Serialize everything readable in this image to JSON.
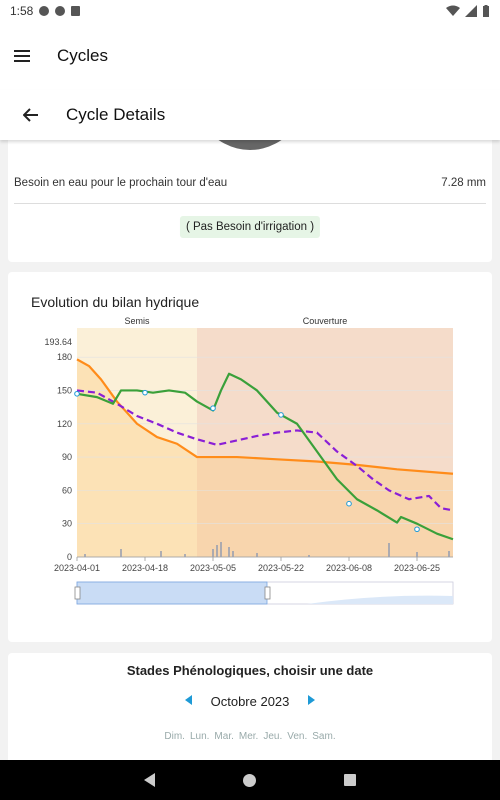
{
  "status": {
    "time": "1:58"
  },
  "appbar": {
    "title": "Cycles"
  },
  "subbar": {
    "title": "Cycle Details"
  },
  "water": {
    "label": "Besoin en eau pour le prochain tour d'eau",
    "value": "7.28 mm"
  },
  "irrigation_badge": "( Pas Besoin d'irrigation )",
  "chart_section": {
    "title": "Evolution du bilan hydrique"
  },
  "chart_data": {
    "type": "line",
    "title": "Evolution du bilan hydrique",
    "xlabel": "",
    "ylabel": "",
    "ylim": [
      0,
      193.64
    ],
    "ymax_label": "193.64",
    "yticks": [
      0,
      30,
      60,
      90,
      120,
      150,
      180
    ],
    "x_tick_labels": [
      "2023-04-01",
      "2023-04-18",
      "2023-05-05",
      "2023-05-22",
      "2023-06-08",
      "2023-06-25"
    ],
    "x_range_days": [
      0,
      90
    ],
    "phases": [
      {
        "name": "Semis",
        "start_day": 0,
        "end_day": 30,
        "color": "#fbf0d8"
      },
      {
        "name": "Couverture",
        "start_day": 30,
        "end_day": 94,
        "color": "#f5dcca"
      }
    ],
    "series": [
      {
        "color": "#ff8c1a",
        "style": "solid",
        "points": [
          [
            0,
            178
          ],
          [
            3,
            172
          ],
          [
            6,
            160
          ],
          [
            10,
            140
          ],
          [
            15,
            120
          ],
          [
            20,
            108
          ],
          [
            25,
            102
          ],
          [
            30,
            90
          ],
          [
            40,
            90
          ],
          [
            50,
            88
          ],
          [
            60,
            86
          ],
          [
            70,
            83
          ],
          [
            80,
            79
          ],
          [
            94,
            75
          ]
        ]
      },
      {
        "color": "#8a1fd6",
        "style": "dashed",
        "points": [
          [
            0,
            150
          ],
          [
            5,
            148
          ],
          [
            10,
            138
          ],
          [
            15,
            127
          ],
          [
            20,
            120
          ],
          [
            25,
            112
          ],
          [
            30,
            106
          ],
          [
            35,
            101
          ],
          [
            40,
            105
          ],
          [
            45,
            109
          ],
          [
            50,
            112
          ],
          [
            55,
            114
          ],
          [
            60,
            112
          ],
          [
            65,
            95
          ],
          [
            70,
            82
          ],
          [
            74,
            70
          ],
          [
            78,
            60
          ],
          [
            83,
            52
          ],
          [
            88,
            55
          ],
          [
            91,
            44
          ],
          [
            94,
            42
          ]
        ]
      },
      {
        "color": "#3aa03a",
        "style": "solid",
        "points": [
          [
            0,
            147
          ],
          [
            5,
            144
          ],
          [
            9,
            138
          ],
          [
            11,
            150
          ],
          [
            15,
            150
          ],
          [
            19,
            148
          ],
          [
            23,
            150
          ],
          [
            27,
            148
          ],
          [
            30,
            140
          ],
          [
            34,
            132
          ],
          [
            36,
            150
          ],
          [
            38,
            165
          ],
          [
            41,
            160
          ],
          [
            45,
            150
          ],
          [
            50,
            130
          ],
          [
            55,
            120
          ],
          [
            60,
            95
          ],
          [
            65,
            70
          ],
          [
            70,
            52
          ],
          [
            75,
            42
          ],
          [
            80,
            31
          ],
          [
            81,
            36
          ],
          [
            85,
            30
          ],
          [
            90,
            21
          ],
          [
            94,
            16
          ]
        ]
      }
    ],
    "markers": [
      [
        0,
        147
      ],
      [
        17,
        148
      ],
      [
        34,
        134
      ],
      [
        51,
        128
      ],
      [
        68,
        48
      ],
      [
        85,
        25
      ]
    ],
    "rain_bars": [
      [
        2,
        3
      ],
      [
        11,
        8
      ],
      [
        21,
        6
      ],
      [
        27,
        3
      ],
      [
        34,
        8
      ],
      [
        35,
        12
      ],
      [
        36,
        15
      ],
      [
        38,
        10
      ],
      [
        39,
        6
      ],
      [
        45,
        4
      ],
      [
        58,
        2
      ],
      [
        78,
        14
      ],
      [
        85,
        5
      ],
      [
        93,
        6
      ]
    ]
  },
  "stades": {
    "title": "Stades Phénologiques, choisir une date",
    "month": "Octobre 2023",
    "days": [
      "Dim.",
      "Lun.",
      "Mar.",
      "Mer.",
      "Jeu.",
      "Ven.",
      "Sam."
    ]
  },
  "icons": {
    "menu": "hamburger-icon",
    "back": "arrow-left-icon",
    "prev": "triangle-left-icon",
    "next": "triangle-right-icon"
  }
}
